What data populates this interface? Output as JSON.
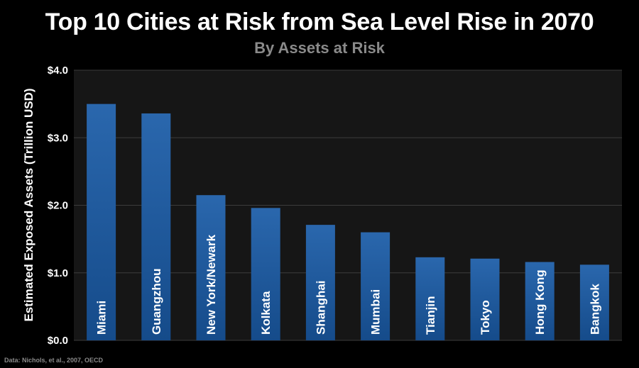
{
  "chart_data": {
    "type": "bar",
    "title": "Top 10 Cities at Risk from Sea Level Rise in 2070",
    "subtitle": "By Assets at Risk",
    "xlabel": "",
    "ylabel": "Estimated Exposed Assets (Trillion USD)",
    "categories": [
      "Miami",
      "Guangzhou",
      "New York/Newark",
      "Kolkata",
      "Shanghai",
      "Mumbai",
      "Tianjin",
      "Tokyo",
      "Hong Kong",
      "Bangkok"
    ],
    "values": [
      3.5,
      3.36,
      2.15,
      1.96,
      1.71,
      1.6,
      1.23,
      1.21,
      1.16,
      1.12
    ],
    "ylim": [
      0,
      4
    ],
    "yticks": [
      0,
      1,
      2,
      3,
      4
    ],
    "ytick_labels": [
      "$0.0",
      "$1.0",
      "$2.0",
      "$3.0",
      "$4.0"
    ],
    "grid": true,
    "legend": "none",
    "colors": {
      "background": "#000000",
      "plot_background": "#161616",
      "gridline": "#3c3c3c",
      "bar_top": "#2a67ad",
      "bar_bottom": "#154b8a",
      "subtitle": "#8a8a8a"
    }
  },
  "source_note": "Data: Nichols, et al., 2007, OECD"
}
